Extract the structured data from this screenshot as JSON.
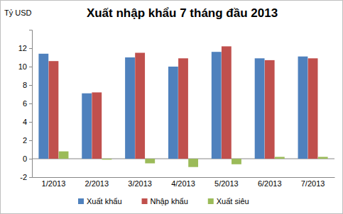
{
  "chart_data": {
    "type": "bar",
    "title": "Xuất nhập khẩu 7 tháng đầu 2013",
    "y_label": "Tỷ USD",
    "categories": [
      "1/2013",
      "2/2013",
      "3/2013",
      "4/2013",
      "5/2013",
      "6/2013",
      "7/2013"
    ],
    "series": [
      {
        "name": "Xuất khẩu",
        "color": "#4f81bd",
        "values": [
          11.4,
          7.1,
          11.0,
          10.0,
          11.6,
          10.9,
          11.1
        ]
      },
      {
        "name": "Nhập khẩu",
        "color": "#c0504d",
        "values": [
          10.6,
          7.2,
          11.5,
          10.9,
          12.2,
          10.7,
          10.9
        ]
      },
      {
        "name": "Xuất siêu",
        "color": "#9bbb59",
        "values": [
          0.8,
          -0.1,
          -0.5,
          -0.9,
          -0.6,
          0.2,
          0.2
        ]
      }
    ],
    "ylim": [
      -2,
      14
    ],
    "yticks": [
      -2,
      0,
      2,
      4,
      6,
      8,
      10,
      12
    ],
    "grid": false,
    "legend": "bottom"
  }
}
